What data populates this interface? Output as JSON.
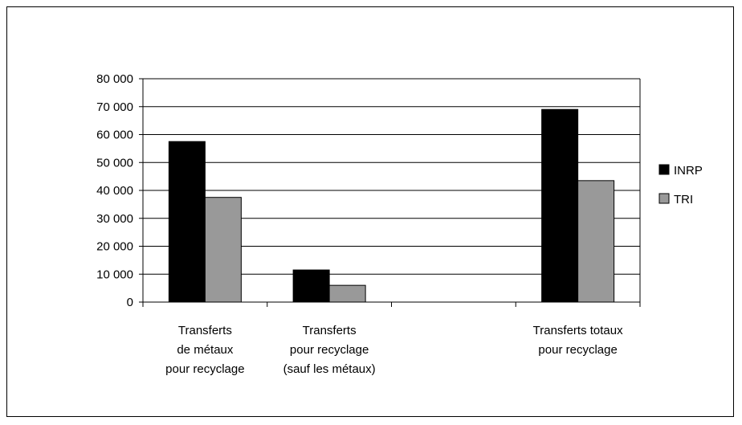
{
  "chart_data": {
    "type": "bar",
    "categories": [
      [
        "Transferts",
        "de métaux",
        "pour recyclage"
      ],
      [
        "Transferts",
        "pour recyclage",
        "(sauf les métaux)"
      ],
      [
        ""
      ],
      [
        "Transferts totaux",
        "pour recyclage"
      ]
    ],
    "series": [
      {
        "name": "INRP",
        "values": [
          57500,
          11500,
          0,
          69000
        ],
        "color": "#000000"
      },
      {
        "name": "TRI",
        "values": [
          37500,
          6000,
          0,
          43500
        ],
        "color": "#999999"
      }
    ],
    "ylim": [
      0,
      80000
    ],
    "yticks": [
      "0",
      "10 000",
      "20 000",
      "30 000",
      "40 000",
      "50 000",
      "60 000",
      "70 000",
      "80 000"
    ],
    "grid": true,
    "legend_position": "right",
    "title": "",
    "xlabel": "",
    "ylabel": ""
  }
}
